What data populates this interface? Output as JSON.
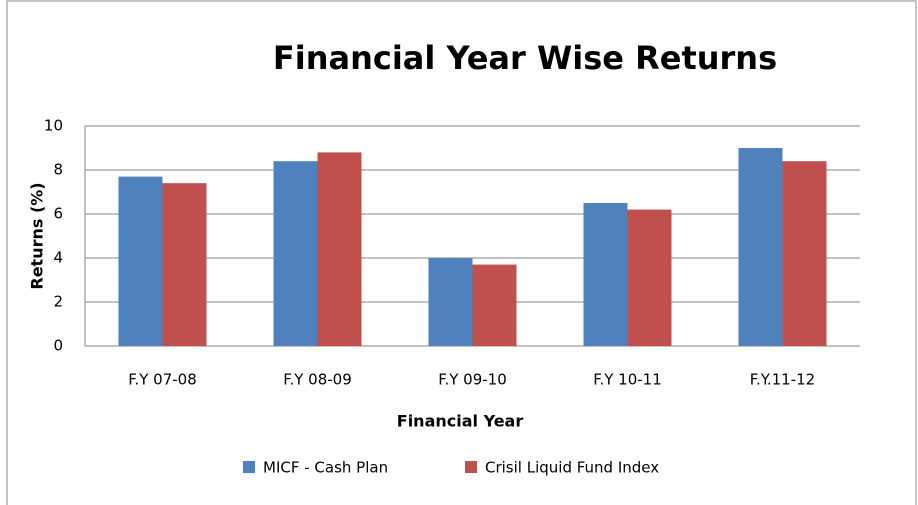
{
  "chart_data": {
    "type": "bar",
    "title": "Financial Year Wise Returns",
    "x_label": "Financial Year",
    "y_label": "Returns (%)",
    "categories": [
      "F.Y 07-08",
      "F.Y 08-09",
      "F.Y 09-10",
      "F.Y 10-11",
      "F.Y.11-12"
    ],
    "series": [
      {
        "name": "MICF - Cash Plan",
        "color": "#4f81bd",
        "values": [
          7.7,
          8.4,
          4.0,
          6.5,
          9.0
        ]
      },
      {
        "name": "Crisil Liquid Fund Index",
        "color": "#c0504d",
        "values": [
          7.4,
          8.8,
          3.7,
          6.2,
          8.4
        ]
      }
    ],
    "ylim": [
      0,
      10
    ],
    "yticks": [
      0,
      2,
      4,
      6,
      8,
      10
    ],
    "grid": true,
    "legend": "bottom"
  }
}
